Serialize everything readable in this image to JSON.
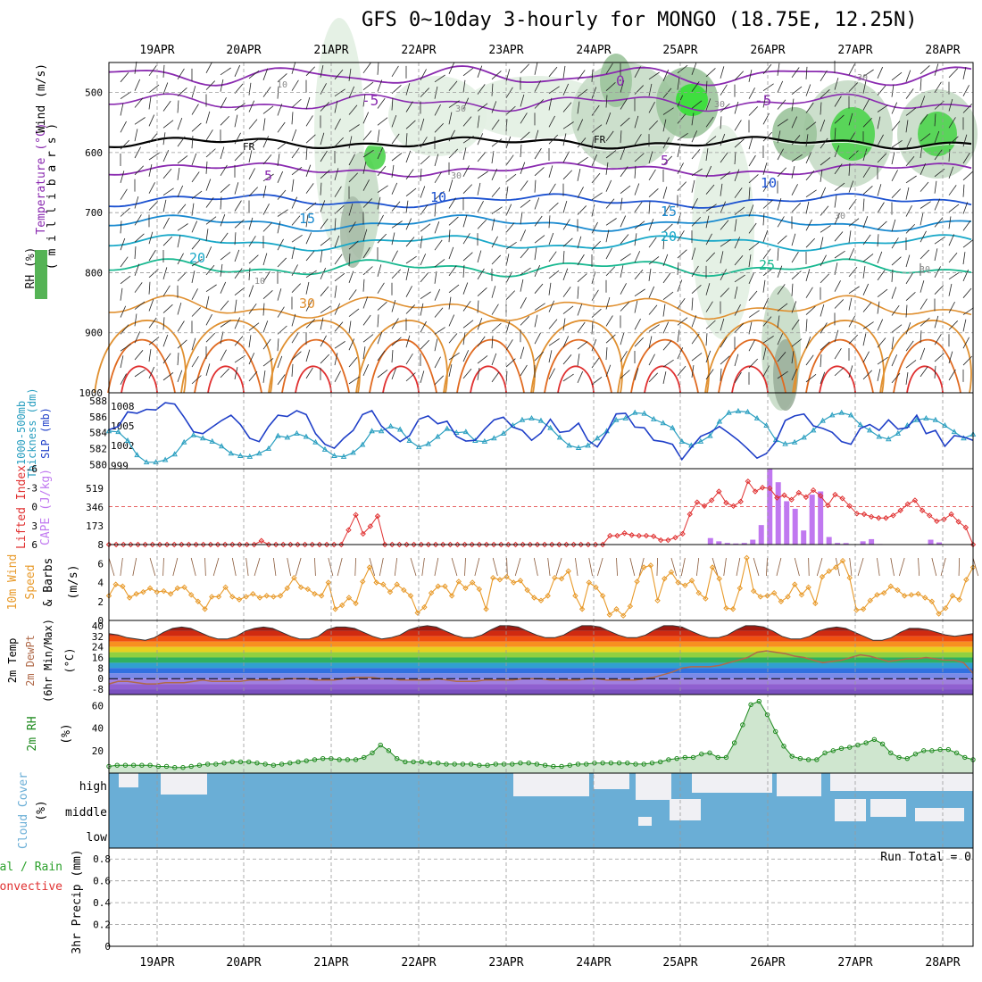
{
  "title": "GFS 0~10day 3-hourly for MONGO (18.75E, 12.25N)",
  "dates": [
    "19APR",
    "20APR",
    "21APR",
    "22APR",
    "23APR",
    "24APR",
    "25APR",
    "26APR",
    "27APR",
    "28APR"
  ],
  "colors": {
    "grid": "#9a9a9a",
    "thickness": "#2a9fc0",
    "slp": "#1f3fc8",
    "cape": "#c078f0",
    "lifted": "#e03030",
    "wind10": "#e89a2a",
    "rh2m": "#1e8a1e",
    "cloud": "#6aaed6",
    "cloud_light": "#f0f0f4",
    "dewpt": "#b06a4a"
  },
  "panels": {
    "upper": {
      "ylabel_wind": "Wind (m/s)",
      "ylabel_temp": "Temperature (°C)",
      "ylabel_rh": "RH (%)",
      "ylabel_units": "( m i l l i b a r s )",
      "yticks": [
        "500",
        "600",
        "700",
        "800",
        "900",
        "1000"
      ],
      "contour_labels": [
        "10",
        "30",
        "-5",
        "0",
        "-5",
        "FR",
        "FR",
        "5",
        "5",
        "10",
        "10",
        "15",
        "15",
        "20",
        "20",
        "25",
        "30",
        "30",
        "30",
        "30",
        "30",
        "30",
        "10"
      ]
    },
    "slp": {
      "ylabel_left": "1000-500mb",
      "ylabel_left2": "Thickness (dm)",
      "ylabel_right": "SLP (mb)",
      "thickness_ticks": [
        "588",
        "586",
        "584",
        "582",
        "580"
      ],
      "slp_ticks": [
        "1008",
        "1005",
        "1002",
        "999"
      ]
    },
    "cape": {
      "ylabel_left": "Lifted Index",
      "ylabel_right": "CAPE (J/kg)",
      "li_ticks": [
        "-6",
        "-3",
        "0",
        "3",
        "6"
      ],
      "cape_ticks": [
        "519",
        "346",
        "173"
      ]
    },
    "wind10": {
      "ylabel_left": "10m Wind",
      "ylabel_speed": "Speed",
      "ylabel_barbs": "& Barbs",
      "ylabel_units": "(m/s)",
      "yticks": [
        "8",
        "6",
        "4",
        "2",
        "0"
      ]
    },
    "temp2m": {
      "ylabel1": "2m Temp",
      "ylabel2": "2m DewPt",
      "ylabel3": "(6hr Min/Max)",
      "ylabel_units": "(°C)",
      "yticks": [
        "40",
        "32",
        "24",
        "16",
        "8",
        "0",
        "-8"
      ]
    },
    "rh2m": {
      "ylabel": "2m RH",
      "ylabel_units": "(%)",
      "yticks": [
        "60",
        "40",
        "20"
      ]
    },
    "cloud": {
      "ylabel": "Cloud Cover",
      "ylabel_units": "(%)",
      "levels": [
        "high",
        "middle",
        "low"
      ]
    },
    "precip": {
      "ylabel_left1": "Total / Rain",
      "ylabel_left2": "Convective",
      "ylabel": "3hr Precip (mm)",
      "yticks": [
        "0.8",
        "0.6",
        "0.4",
        "0.2",
        "0"
      ],
      "run_total": "Run Total = 0"
    }
  },
  "chart_data": [
    {
      "type": "line",
      "name_panel": "1000-500mb thickness and SLP",
      "series": [
        {
          "name": "Thickness (dm)",
          "values": [
            584.2,
            584.1,
            583.0,
            581.2,
            580.3,
            580.3,
            580.6,
            581.3,
            582.8,
            583.7,
            583.3,
            582.9,
            582.3,
            581.4,
            581.1,
            581.0,
            581.4,
            582.0,
            583.6,
            583.4,
            583.9,
            583.5,
            582.8,
            581.9,
            581.1,
            581.0,
            581.5,
            582.5,
            584.2,
            584.2,
            584.8,
            584.4,
            583.0,
            582.2,
            582.6,
            583.5,
            584.5,
            584.0,
            584.1,
            583.0,
            582.9,
            583.3,
            583.9,
            584.9,
            585.6,
            585.8,
            585.5,
            584.6,
            583.4,
            582.4,
            582.1,
            582.4,
            583.3,
            584.2,
            585.6,
            585.8,
            586.5,
            586.4,
            585.7,
            585.2,
            584.6,
            582.9,
            582.4,
            582.9,
            583.6,
            585.4,
            586.5,
            586.7,
            586.6,
            585.8,
            584.9,
            583.1,
            582.6,
            582.8,
            583.4,
            584.3,
            585.5,
            586.2,
            586.5,
            586.2,
            585.0,
            584.3,
            583.5,
            583.2,
            583.9,
            584.9,
            585.6,
            585.8,
            585.6,
            584.9,
            584.1,
            583.3,
            583.8
          ]
        },
        {
          "name": "SLP (mb)",
          "values": [
            1004.4,
            1004.9,
            1007.1,
            1006.9,
            1007.5,
            1007.4,
            1008.5,
            1008.3,
            1006.3,
            1004.1,
            1003.8,
            1004.8,
            1005.8,
            1006.6,
            1005.2,
            1003.1,
            1002.6,
            1004.9,
            1006.6,
            1006.4,
            1007.3,
            1006.7,
            1003.8,
            1002.2,
            1001.6,
            1003.1,
            1004.3,
            1006.7,
            1007.3,
            1005.0,
            1003.7,
            1002.6,
            1003.5,
            1006.0,
            1006.5,
            1005.3,
            1005.7,
            1003.4,
            1002.7,
            1002.8,
            1004.5,
            1005.9,
            1006.3,
            1004.8,
            1004.3,
            1002.8,
            1003.9,
            1006.0,
            1004.0,
            1004.2,
            1005.4,
            1002.8,
            1001.8,
            1004.0,
            1006.8,
            1006.9,
            1004.8,
            1004.7,
            1002.8,
            1002.6,
            1002.2,
            999.9,
            1001.7,
            1003.4,
            1004.0,
            1004.9,
            1003.9,
            1002.8,
            1001.5,
            1000.1,
            1000.8,
            1002.6,
            1005.8,
            1006.5,
            1006.8,
            1005.0,
            1004.6,
            1004.0,
            1002.6,
            1002.2,
            1004.6,
            1005.2,
            1004.3,
            1005.9,
            1004.5,
            1004.7,
            1006.6,
            1003.8,
            1004.3,
            1001.9,
            1003.5,
            1003.3,
            1002.8
          ]
        }
      ]
    },
    {
      "type": "bar",
      "name_panel": "CAPE (J/kg) and Lifted Index",
      "series": [
        {
          "name": "CAPE (J/kg)",
          "values": [
            0,
            0,
            0,
            0,
            0,
            0,
            0,
            0,
            0,
            0,
            0,
            0,
            0,
            0,
            0,
            0,
            0,
            0,
            0,
            0,
            0,
            0,
            0,
            0,
            0,
            0,
            0,
            0,
            0,
            0,
            0,
            0,
            0,
            0,
            0,
            0,
            0,
            0,
            0,
            0,
            0,
            0,
            0,
            0,
            0,
            0,
            0,
            0,
            0,
            0,
            0,
            0,
            0,
            0,
            0,
            0,
            0,
            0,
            0,
            0,
            0,
            0,
            0,
            0,
            0,
            0,
            0,
            0,
            0,
            0,
            0,
            60,
            30,
            15,
            10,
            15,
            45,
            180,
            700,
            575,
            400,
            330,
            130,
            460,
            490,
            70,
            15,
            14,
            0,
            30,
            50,
            5,
            0,
            0,
            0,
            0,
            0,
            45,
            20,
            0,
            0,
            0,
            0
          ]
        },
        {
          "name": "Lifted Index",
          "values": [
            6,
            6,
            6,
            6,
            6,
            6,
            6,
            6,
            6,
            6,
            6,
            6,
            6,
            6,
            6,
            6,
            6,
            6,
            6,
            6,
            6,
            5.4,
            6,
            6,
            6,
            6,
            6,
            6,
            6,
            6,
            6,
            6,
            6,
            3.7,
            1.3,
            4.3,
            3.1,
            1.5,
            6,
            6,
            6,
            6,
            6,
            6,
            6,
            6,
            6,
            6,
            6,
            6,
            6,
            6,
            6,
            6,
            6,
            6,
            6,
            6,
            6,
            6,
            6,
            6,
            6,
            6,
            6,
            6,
            6,
            6,
            6,
            4.6,
            4.6,
            4.2,
            4.5,
            4.6,
            4.6,
            4.7,
            5.3,
            5.3,
            4.9,
            4.3,
            1.2,
            -0.7,
            -0.1,
            -1.0,
            -2.4,
            -0.6,
            -0.1,
            -0.8,
            -4.0,
            -2.4,
            -3.0,
            -2.9,
            -1.4,
            -1.8,
            -1.1,
            -2.2,
            -1.5,
            -2.6,
            -1.7,
            -0.2,
            -1.9,
            -1.3,
            -0.1,
            1.1,
            1.2,
            1.6,
            1.8,
            1.8,
            1.4,
            0.6,
            -0.4,
            -1.0,
            0.6,
            1.4,
            2.3,
            2.0,
            1.2,
            2.4,
            3.3,
            6
          ]
        }
      ]
    },
    {
      "type": "line",
      "name_panel": "10m wind speed",
      "series": [
        {
          "name": "10m Wind Speed (m/s)",
          "values": [
            2.6,
            3.8,
            3.6,
            2.4,
            2.8,
            3.0,
            3.4,
            3.0,
            3.1,
            2.8,
            3.4,
            3.5,
            2.7,
            2.0,
            1.2,
            2.5,
            2.5,
            3.5,
            2.5,
            2.2,
            2.5,
            2.8,
            2.4,
            2.6,
            2.5,
            2.6,
            3.4,
            4.5,
            3.5,
            3.3,
            2.8,
            2.6,
            4.0,
            1.2,
            1.6,
            2.4,
            1.8,
            4.1,
            5.6,
            4.0,
            3.8,
            3.0,
            3.8,
            3.2,
            2.6,
            0.8,
            1.4,
            2.9,
            3.6,
            3.6,
            2.6,
            4.1,
            3.4,
            4.0,
            3.3,
            1.2,
            4.5,
            4.3,
            4.6,
            4.0,
            4.2,
            3.2,
            2.4,
            2.1,
            2.6,
            4.5,
            4.4,
            5.2,
            2.6,
            1.2,
            4.0,
            3.5,
            2.6,
            0.6,
            1.2,
            0.5,
            1.5,
            4.1,
            5.6,
            5.8,
            2.1,
            4.4,
            5.1,
            4.0,
            3.7,
            4.2,
            2.9,
            2.3,
            5.6,
            4.4,
            1.3,
            1.2,
            3.4,
            6.6,
            3.1,
            2.5,
            2.6,
            2.9,
            2.0,
            2.5,
            3.8,
            2.7,
            3.5,
            1.8,
            4.6,
            5.2,
            5.6,
            6.3,
            4.5,
            1.1,
            1.2,
            2.1,
            2.7,
            2.9,
            3.6,
            3.2,
            2.6,
            2.7,
            2.8,
            2.4,
            2.0,
            0.7,
            1.3,
            2.6,
            2.2,
            4.3,
            5.6
          ]
        }
      ]
    },
    {
      "type": "line",
      "name_panel": "2m temperature and dew point",
      "series": [
        {
          "name": "2m Temp (°C)",
          "values": [
            34,
            33,
            31,
            30,
            29,
            31,
            35,
            38,
            39,
            38,
            35,
            32,
            30,
            30,
            32,
            36,
            38,
            39,
            38,
            35,
            32,
            30,
            30,
            32,
            37,
            39,
            39,
            38,
            35,
            32,
            30,
            31,
            33,
            37,
            39,
            40,
            39,
            36,
            33,
            31,
            31,
            33,
            37,
            40,
            40,
            39,
            36,
            33,
            31,
            31,
            33,
            37,
            40,
            40,
            39,
            36,
            33,
            31,
            31,
            33,
            37,
            40,
            40,
            39,
            36,
            33,
            31,
            31,
            33,
            37,
            40,
            40,
            39,
            36,
            32,
            30,
            30,
            32,
            36,
            38,
            39,
            38,
            35,
            32,
            29,
            29,
            31,
            35,
            38,
            38,
            37,
            35,
            33,
            32,
            33,
            34
          ]
        },
        {
          "name": "2m DewPt (°C)",
          "values": [
            -4,
            -2,
            -2,
            -3,
            -4,
            -4,
            -3,
            -3,
            -3,
            -2,
            -1,
            -2,
            -2,
            -2,
            -2,
            -1,
            -1,
            -1,
            -1,
            0,
            0,
            0,
            -1,
            -1,
            -1,
            0,
            1,
            1,
            1,
            0,
            0,
            -1,
            -1,
            -1,
            -1,
            0,
            -1,
            -2,
            -2,
            -2,
            -1,
            -1,
            -1,
            -1,
            0,
            0,
            0,
            -1,
            -1,
            -1,
            -1,
            0,
            0,
            -1,
            -1,
            -1,
            -1,
            0,
            1,
            3,
            5,
            8,
            9,
            9,
            9,
            10,
            12,
            14,
            16,
            20,
            21,
            20,
            19,
            17,
            16,
            14,
            12,
            13,
            14,
            16,
            18,
            17,
            15,
            13,
            14,
            15,
            15,
            16,
            15,
            14,
            14,
            12,
            4
          ]
        }
      ]
    },
    {
      "type": "line",
      "name_panel": "2m relative humidity",
      "series": [
        {
          "name": "2m RH (%)",
          "values": [
            6,
            7,
            7,
            7,
            7,
            7,
            6,
            6,
            5,
            5,
            6,
            7,
            8,
            8,
            9,
            10,
            10,
            10,
            9,
            8,
            7,
            8,
            9,
            10,
            11,
            12,
            13,
            13,
            12,
            12,
            12,
            14,
            18,
            25,
            20,
            13,
            10,
            10,
            10,
            9,
            9,
            8,
            8,
            8,
            8,
            7,
            7,
            8,
            8,
            8,
            9,
            9,
            8,
            7,
            6,
            6,
            7,
            8,
            8,
            9,
            9,
            9,
            9,
            9,
            8,
            8,
            9,
            10,
            12,
            13,
            14,
            14,
            17,
            18,
            14,
            14,
            27,
            43,
            61,
            64,
            52,
            37,
            24,
            15,
            13,
            12,
            12,
            18,
            20,
            22,
            23,
            25,
            27,
            30,
            26,
            18,
            14,
            13,
            17,
            20,
            20,
            21,
            21,
            18,
            14,
            12
          ]
        }
      ]
    },
    {
      "type": "bar",
      "name_panel": "3hr precipitation",
      "series": [
        {
          "name": "3hr Precip (mm)",
          "values": [
            0
          ]
        }
      ],
      "ylim": [
        0,
        0.9
      ]
    }
  ]
}
